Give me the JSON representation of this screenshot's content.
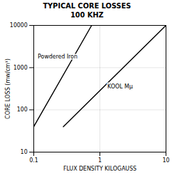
{
  "chart_data": {
    "type": "line",
    "title": "TYPICAL CORE LOSSES",
    "subtitle": "100 KHZ",
    "xlabel": "FLUX DENSITY KILOGAUSS",
    "ylabel": "CORE LOSS (mw/cm³)",
    "log": true,
    "grid": true,
    "xlim": [
      0.1,
      10
    ],
    "ylim": [
      10,
      10000
    ],
    "xticks": [
      0.1,
      1,
      10
    ],
    "yticks": [
      10,
      100,
      1000,
      10000
    ],
    "series": [
      {
        "color": "#000000",
        "x": [
          0.1,
          0.75
        ],
        "values": [
          40,
          10000
        ]
      },
      {
        "color": "#000000",
        "x": [
          0.28,
          10
        ],
        "values": [
          40,
          10000
        ]
      }
    ],
    "annotations": [
      {
        "text": "Powdered Iron",
        "x": 0.115,
        "y": 1800
      },
      {
        "text": "KOOL Mμ",
        "x": 1.3,
        "y": 350
      }
    ]
  }
}
